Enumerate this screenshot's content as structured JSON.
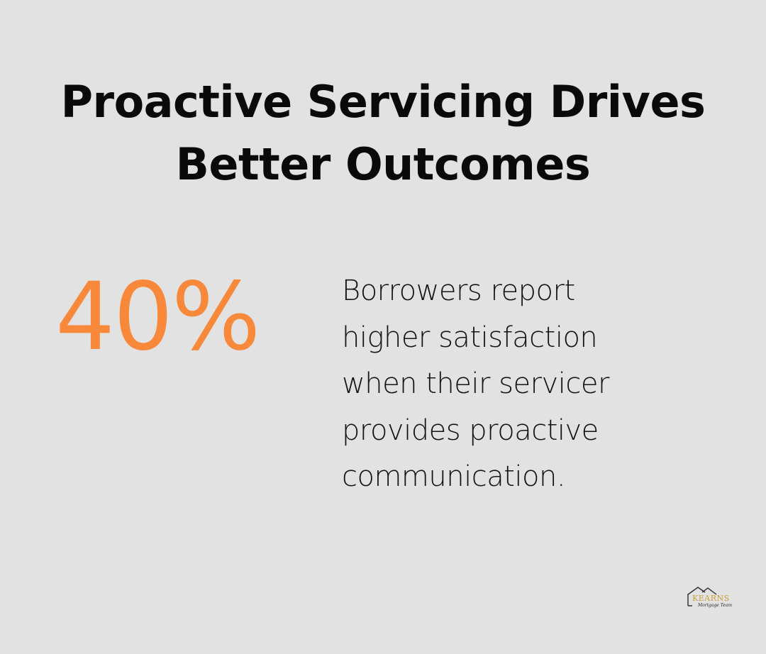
{
  "title": {
    "line1": "Proactive Servicing Drives",
    "line2": "Better Outcomes"
  },
  "stat": {
    "value": "40%",
    "description_lines": [
      "Borrowers report",
      "higher satisfaction",
      "when their servicer",
      "provides proactive",
      "communication."
    ]
  },
  "logo": {
    "brand": "KEARNS",
    "tagline": "Mortgage Team",
    "icon": "house-roof-icon"
  },
  "colors": {
    "background": "#e1e2e1",
    "accent": "#f9893a",
    "title_text": "#0a0a0a",
    "body_text": "#151515",
    "logo_gold": "#c9a13b"
  }
}
